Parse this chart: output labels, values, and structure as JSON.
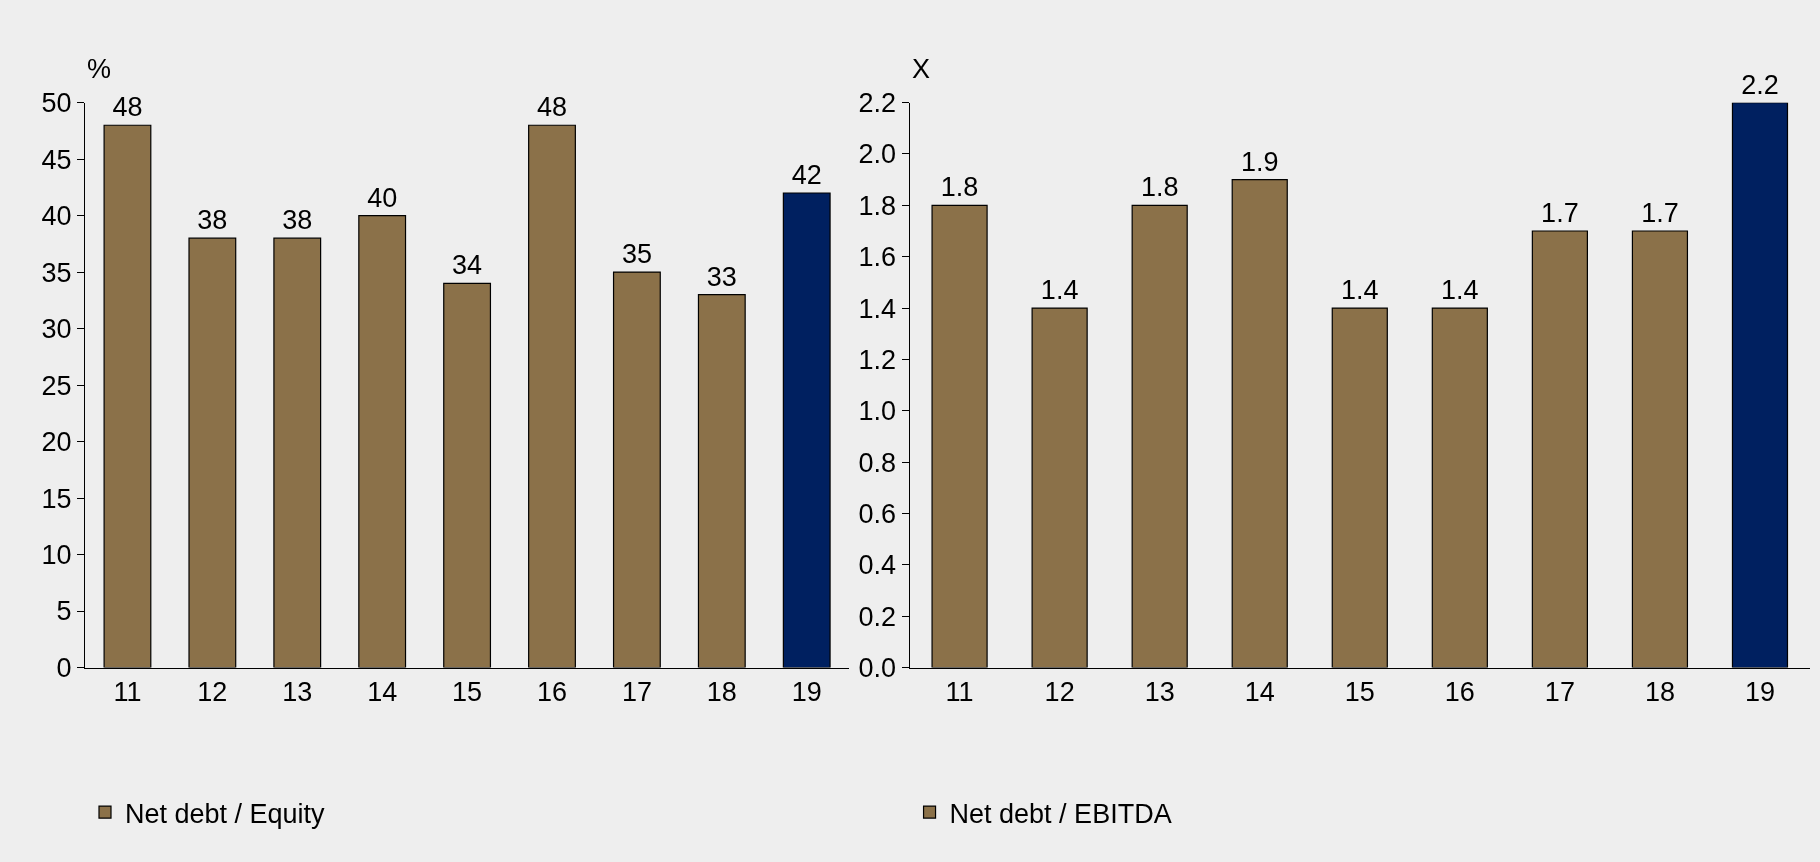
{
  "chart_data": [
    {
      "type": "bar",
      "ylabel": "%",
      "categories": [
        "11",
        "12",
        "13",
        "14",
        "15",
        "16",
        "17",
        "18",
        "19"
      ],
      "series": [
        {
          "name": "Net debt / Equity",
          "colors": [
            "#8b7149",
            "#8b7149",
            "#8b7149",
            "#8b7149",
            "#8b7149",
            "#8b7149",
            "#8b7149",
            "#8b7149",
            "#002060"
          ],
          "values": [
            48,
            38,
            38,
            40,
            34,
            48,
            35,
            33,
            42
          ]
        }
      ],
      "ylim": [
        0,
        50
      ],
      "yticks": [
        0,
        5,
        10,
        15,
        20,
        25,
        30,
        35,
        40,
        45,
        50
      ],
      "data_labels": true,
      "grid": false,
      "legend": "bottom"
    },
    {
      "type": "bar",
      "ylabel": "X",
      "categories": [
        "11",
        "12",
        "13",
        "14",
        "15",
        "16",
        "17",
        "18",
        "19"
      ],
      "series": [
        {
          "name": "Net debt / EBITDA",
          "colors": [
            "#8b7149",
            "#8b7149",
            "#8b7149",
            "#8b7149",
            "#8b7149",
            "#8b7149",
            "#8b7149",
            "#8b7149",
            "#002060"
          ],
          "values": [
            1.8,
            1.4,
            1.8,
            1.9,
            1.4,
            1.4,
            1.7,
            1.7,
            2.2
          ]
        }
      ],
      "ylim": [
        0,
        2.2
      ],
      "yticks": [
        {
          "value": 0,
          "label": "0.0"
        },
        {
          "value": 0.2,
          "label": "0.2"
        },
        {
          "value": 0.4,
          "label": "0.4"
        },
        {
          "value": 0.6,
          "label": "0.6"
        },
        {
          "value": 0.8,
          "label": "0.8"
        },
        {
          "value": 1.0,
          "label": "1.0"
        },
        {
          "value": 1.2,
          "label": "1.2"
        },
        {
          "value": 1.4,
          "label": "1.4"
        },
        {
          "value": 1.6,
          "label": "1.6"
        },
        {
          "value": 1.8,
          "label": "1.8"
        },
        {
          "value": 2.0,
          "label": "2.0"
        },
        {
          "value": 2.2,
          "label": "2.2"
        }
      ],
      "data_labels": true,
      "grid": false,
      "legend": "bottom"
    }
  ]
}
